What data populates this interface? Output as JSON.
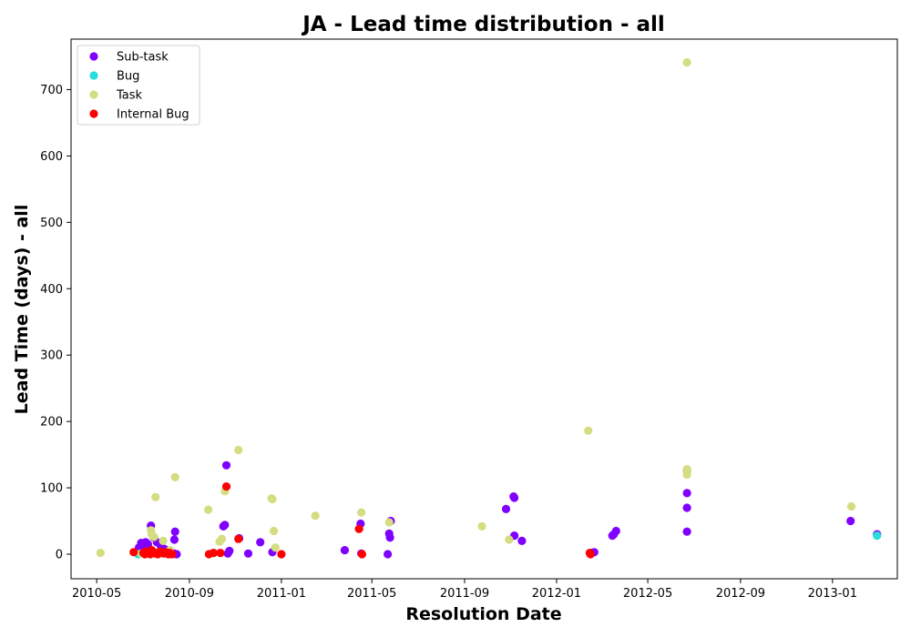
{
  "chart_data": {
    "type": "scatter",
    "title": "JA - Lead time distribution - all",
    "xlabel": "Resolution Date",
    "ylabel": "Lead Time (days) - all",
    "xlim": [
      "2010-03-28",
      "2013-03-28"
    ],
    "ylim": [
      -37,
      776
    ],
    "x_ticks": [
      "2010-05",
      "2010-09",
      "2011-01",
      "2011-05",
      "2011-09",
      "2012-01",
      "2012-05",
      "2012-09",
      "2013-01"
    ],
    "x_tick_dates": [
      "2010-05-01",
      "2010-09-01",
      "2011-01-01",
      "2011-05-01",
      "2011-09-01",
      "2012-01-01",
      "2012-05-01",
      "2012-09-01",
      "2013-01-01"
    ],
    "y_ticks": [
      0,
      100,
      200,
      300,
      400,
      500,
      600,
      700
    ],
    "legend_position": "upper-left",
    "grid": false,
    "series": [
      {
        "name": "Sub-task",
        "color": "#8000ff",
        "points": [
          [
            "2010-06-24",
            3
          ],
          [
            "2010-06-26",
            10
          ],
          [
            "2010-06-29",
            17
          ],
          [
            "2010-07-02",
            12
          ],
          [
            "2010-07-05",
            18
          ],
          [
            "2010-07-08",
            15
          ],
          [
            "2010-07-12",
            43
          ],
          [
            "2010-07-16",
            25
          ],
          [
            "2010-07-20",
            18
          ],
          [
            "2010-07-25",
            13
          ],
          [
            "2010-07-30",
            8
          ],
          [
            "2010-08-04",
            3
          ],
          [
            "2010-08-10",
            2
          ],
          [
            "2010-08-12",
            22
          ],
          [
            "2010-08-13",
            34
          ],
          [
            "2010-08-15",
            0
          ],
          [
            "2010-10-16",
            42
          ],
          [
            "2010-10-18",
            44
          ],
          [
            "2010-10-20",
            134
          ],
          [
            "2010-10-22",
            1
          ],
          [
            "2010-10-24",
            5
          ],
          [
            "2010-11-06",
            24
          ],
          [
            "2010-11-18",
            1
          ],
          [
            "2010-12-04",
            18
          ],
          [
            "2010-12-20",
            3
          ],
          [
            "2011-03-26",
            6
          ],
          [
            "2011-04-16",
            46
          ],
          [
            "2011-04-17",
            1
          ],
          [
            "2011-05-22",
            0
          ],
          [
            "2011-05-24",
            31
          ],
          [
            "2011-05-25",
            25
          ],
          [
            "2011-05-26",
            50
          ],
          [
            "2011-10-26",
            68
          ],
          [
            "2011-11-05",
            87
          ],
          [
            "2011-11-06",
            85
          ],
          [
            "2011-11-06",
            28
          ],
          [
            "2011-11-16",
            20
          ],
          [
            "2012-02-16",
            2
          ],
          [
            "2012-02-20",
            3
          ],
          [
            "2012-03-15",
            28
          ],
          [
            "2012-03-17",
            30
          ],
          [
            "2012-03-20",
            35
          ],
          [
            "2012-06-22",
            126
          ],
          [
            "2012-06-22",
            92
          ],
          [
            "2012-06-22",
            70
          ],
          [
            "2012-06-22",
            34
          ],
          [
            "2013-01-25",
            50
          ],
          [
            "2013-03-01",
            30
          ]
        ]
      },
      {
        "name": "Bug",
        "color": "#2adddd",
        "points": [
          [
            "2010-06-25",
            0
          ],
          [
            "2013-03-01",
            28
          ]
        ]
      },
      {
        "name": "Task",
        "color": "#d4dd80",
        "points": [
          [
            "2010-05-06",
            2
          ],
          [
            "2010-06-29",
            1
          ],
          [
            "2010-07-12",
            36
          ],
          [
            "2010-07-13",
            30
          ],
          [
            "2010-07-16",
            26
          ],
          [
            "2010-07-18",
            86
          ],
          [
            "2010-07-28",
            20
          ],
          [
            "2010-08-06",
            6
          ],
          [
            "2010-08-13",
            116
          ],
          [
            "2010-09-26",
            67
          ],
          [
            "2010-10-11",
            19
          ],
          [
            "2010-10-14",
            23
          ],
          [
            "2010-10-18",
            95
          ],
          [
            "2010-11-05",
            157
          ],
          [
            "2010-12-19",
            84
          ],
          [
            "2010-12-20",
            83
          ],
          [
            "2010-12-22",
            35
          ],
          [
            "2010-12-24",
            10
          ],
          [
            "2011-02-15",
            58
          ],
          [
            "2011-04-17",
            63
          ],
          [
            "2011-05-24",
            48
          ],
          [
            "2011-09-24",
            42
          ],
          [
            "2011-10-30",
            22
          ],
          [
            "2012-02-12",
            186
          ],
          [
            "2012-06-22",
            741
          ],
          [
            "2012-06-22",
            128
          ],
          [
            "2012-06-22",
            124
          ],
          [
            "2012-06-22",
            120
          ],
          [
            "2013-01-26",
            72
          ]
        ]
      },
      {
        "name": "Internal Bug",
        "color": "#ff0000",
        "points": [
          [
            "2010-06-19",
            3
          ],
          [
            "2010-07-02",
            2
          ],
          [
            "2010-07-04",
            0
          ],
          [
            "2010-07-06",
            4
          ],
          [
            "2010-07-09",
            2
          ],
          [
            "2010-07-11",
            0
          ],
          [
            "2010-07-13",
            6
          ],
          [
            "2010-07-16",
            3
          ],
          [
            "2010-07-18",
            1
          ],
          [
            "2010-07-21",
            0
          ],
          [
            "2010-07-24",
            4
          ],
          [
            "2010-07-27",
            2
          ],
          [
            "2010-07-29",
            1
          ],
          [
            "2010-08-01",
            3
          ],
          [
            "2010-08-04",
            0
          ],
          [
            "2010-08-06",
            2
          ],
          [
            "2010-08-09",
            0
          ],
          [
            "2010-09-27",
            0
          ],
          [
            "2010-10-03",
            2
          ],
          [
            "2010-10-12",
            2
          ],
          [
            "2010-10-20",
            102
          ],
          [
            "2010-11-05",
            23
          ],
          [
            "2011-01-01",
            0
          ],
          [
            "2011-04-14",
            38
          ],
          [
            "2011-04-18",
            0
          ],
          [
            "2012-02-14",
            2
          ],
          [
            "2012-02-15",
            0
          ]
        ]
      }
    ]
  }
}
